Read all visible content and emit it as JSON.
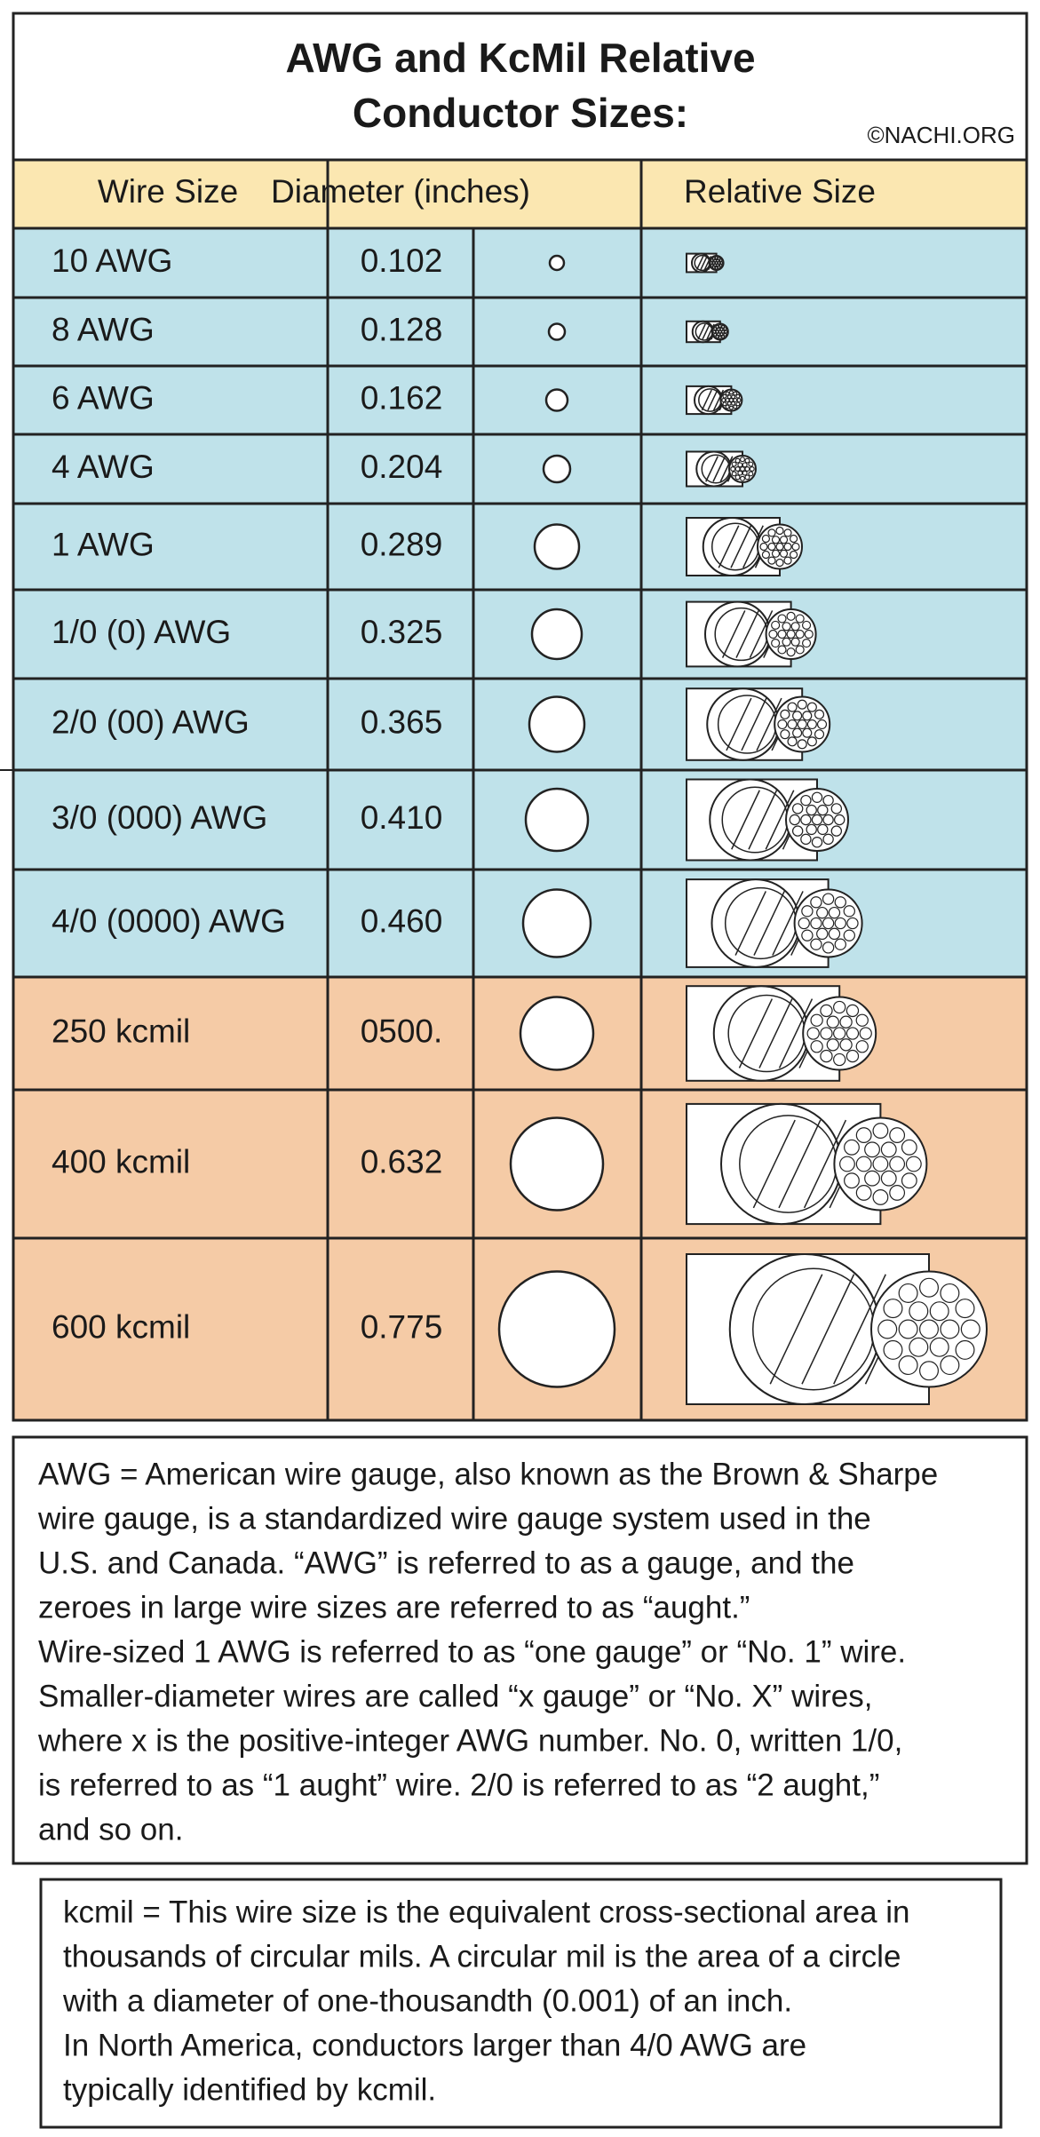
{
  "header": {
    "title_lines": [
      "AWG and KcMil Relative",
      "Conductor Sizes:"
    ],
    "credit": "©NACHI.ORG"
  },
  "table": {
    "columns": [
      "Wire Size",
      "Diameter (inches)",
      "Relative Size"
    ],
    "rows": [
      [
        "10 AWG",
        "0.102"
      ],
      [
        "8 AWG",
        "0.128"
      ],
      [
        "6 AWG",
        "0.162"
      ],
      [
        "4 AWG",
        "0.204"
      ],
      [
        "1 AWG",
        "0.289"
      ],
      [
        "1/0 (0) AWG",
        "0.325"
      ],
      [
        "2/0 (00) AWG",
        "0.365"
      ],
      [
        "3/0 (000) AWG",
        "0.410"
      ],
      [
        "4/0 (0000) AWG",
        "0.460"
      ],
      [
        "250 kcmil",
        "0500."
      ],
      [
        "400 kcmil",
        "0.632"
      ],
      [
        "600 kcmil",
        "0.775"
      ]
    ]
  },
  "notes": [
    {
      "lines": [
        "AWG = American wire gauge, also known as the Brown & Sharpe",
        "wire gauge, is a standardized wire gauge system used in the",
        "U.S. and Canada. “AWG” is referred to as a gauge, and the",
        "zeroes in large wire sizes are referred to as “aught.”",
        "Wire-sized 1 AWG is referred to as “one gauge” or “No. 1” wire.",
        "Smaller-diameter wires are called “x gauge” or “No. X” wires,",
        "where x is the positive-integer AWG number.  No. 0, written 1/0,",
        "is referred to as “1 aught” wire. 2/0 is referred to as “2 aught,”",
        "and so on."
      ]
    },
    {
      "lines": [
        "kcmil = This wire size is the equivalent cross-sectional area in",
        "thousands of circular mils. A circular mil is the area of a circle",
        "with a diameter of one-thousandth (0.001) of an inch.",
        "In North America, conductors larger than 4/0 AWG are",
        "typically identified by kcmil."
      ]
    }
  ]
}
